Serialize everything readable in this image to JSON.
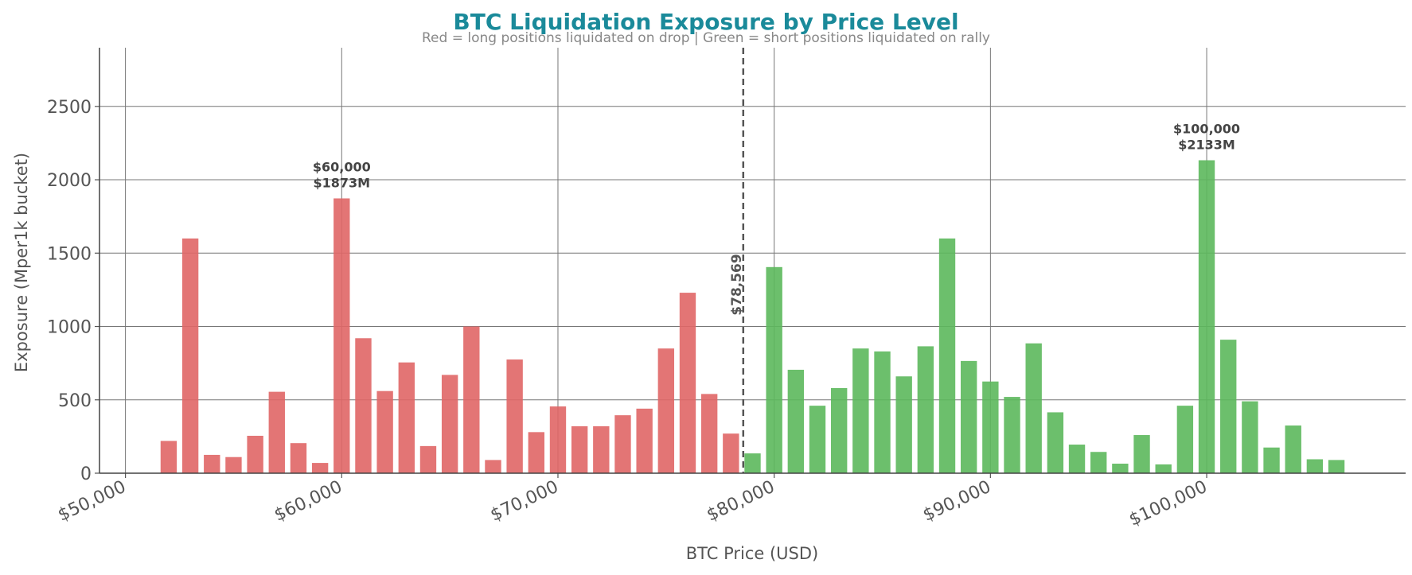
{
  "chart_data": {
    "type": "bar",
    "title": "BTC Liquidation Exposure by Price Level",
    "subtitle": "Red = long positions liquidated on drop  |  Green = short positions liquidated on rally",
    "x_label": "BTC Price (USD)",
    "y_label": "Exposure (Mper1k bucket)",
    "series": [
      {
        "color": "#e06666",
        "x": [
          52000,
          53000,
          54000,
          55000,
          56000,
          57000,
          58000,
          59000,
          60000,
          61000,
          62000,
          63000,
          64000,
          65000,
          66000,
          67000,
          68000,
          69000,
          70000,
          71000,
          72000,
          73000,
          74000,
          75000,
          76000,
          77000,
          78000
        ],
        "values": [
          220,
          1600,
          125,
          110,
          255,
          555,
          205,
          70,
          1873,
          920,
          560,
          755,
          185,
          670,
          1000,
          90,
          775,
          280,
          455,
          320,
          320,
          395,
          440,
          850,
          1230,
          540,
          270
        ]
      },
      {
        "color": "#5cb85c",
        "x": [
          79000,
          80000,
          81000,
          82000,
          83000,
          84000,
          85000,
          86000,
          87000,
          88000,
          89000,
          90000,
          91000,
          92000,
          93000,
          94000,
          95000,
          96000,
          97000,
          98000,
          99000,
          100000,
          101000,
          102000,
          103000,
          104000,
          105000,
          106000
        ],
        "values": [
          135,
          1405,
          705,
          460,
          580,
          850,
          830,
          660,
          865,
          1600,
          765,
          625,
          520,
          885,
          415,
          195,
          145,
          65,
          260,
          60,
          460,
          2133,
          910,
          490,
          175,
          325,
          95,
          90
        ]
      }
    ],
    "current_price": {
      "value": 78569,
      "label": "$78,569"
    },
    "annotations": [
      {
        "x": 60000,
        "y": 1873,
        "lines": [
          "$60,000",
          "$1873M"
        ]
      },
      {
        "x": 100000,
        "y": 2133,
        "lines": [
          "$100,000",
          "$2133M"
        ]
      }
    ],
    "xlim": [
      48800,
      109200
    ],
    "ylim": [
      0,
      2900
    ],
    "xticks": [
      {
        "value": 50000,
        "label": "$50,000"
      },
      {
        "value": 60000,
        "label": "$60,000"
      },
      {
        "value": 70000,
        "label": "$70,000"
      },
      {
        "value": 80000,
        "label": "$80,000"
      },
      {
        "value": 90000,
        "label": "$90,000"
      },
      {
        "value": 100000,
        "label": "$100,000"
      }
    ],
    "yticks": [
      0,
      500,
      1000,
      1500,
      2000,
      2500
    ],
    "grid": true
  }
}
